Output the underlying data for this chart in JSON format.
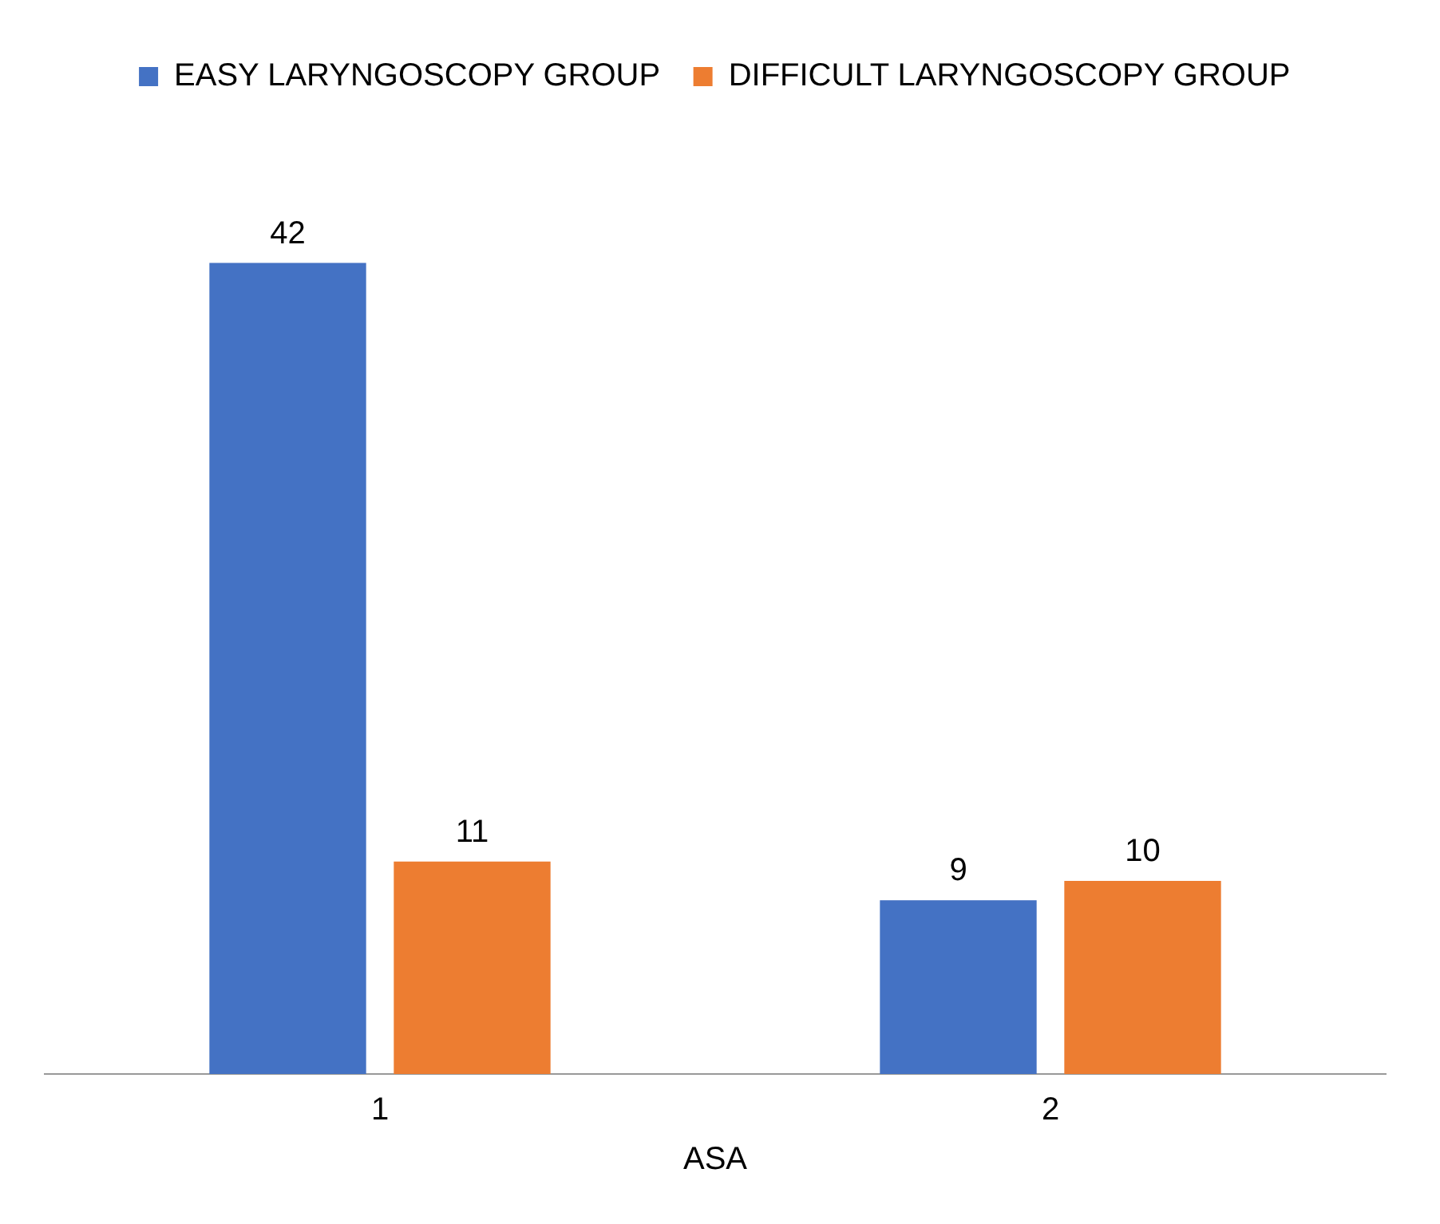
{
  "chart_data": {
    "type": "bar",
    "categories": [
      "1",
      "2"
    ],
    "xlabel": "ASA",
    "series": [
      {
        "name": "EASY LARYNGOSCOPY GROUP",
        "color": "#4472c4",
        "values": [
          42,
          9
        ]
      },
      {
        "name": "DIFFICULT LARYNGOSCOPY GROUP",
        "color": "#ed7d31",
        "values": [
          11,
          10
        ]
      }
    ],
    "data_labels": true,
    "legend": "top",
    "tick_labels": "x",
    "grid": false
  }
}
